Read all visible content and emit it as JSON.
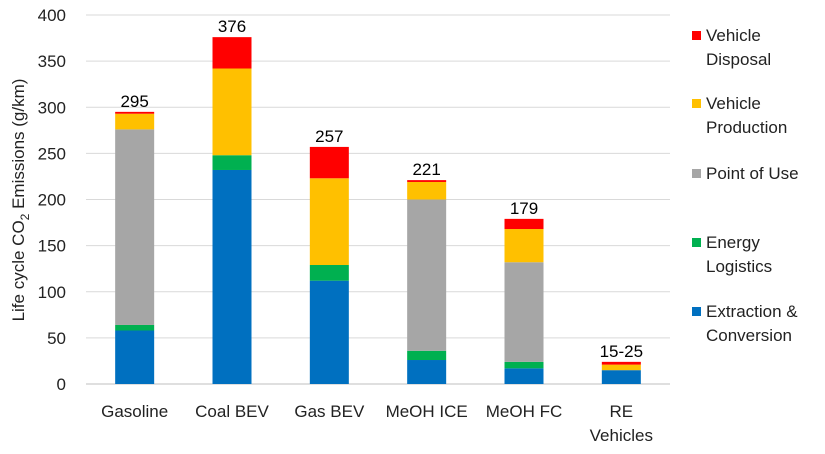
{
  "chart_data": {
    "type": "bar",
    "stacked": true,
    "ylabel_main": "Life cycle CO",
    "ylabel_sub": "2",
    "ylabel_tail": " Emissions (g/km)",
    "ylim": [
      0,
      400
    ],
    "yticks": [
      "0",
      "50",
      "100",
      "150",
      "200",
      "250",
      "300",
      "350",
      "400"
    ],
    "grid": true,
    "legend_position": "right",
    "categories": [
      [
        "Gasoline"
      ],
      [
        "Coal BEV"
      ],
      [
        "Gas BEV"
      ],
      [
        "MeOH ICE"
      ],
      [
        "MeOH FC"
      ],
      [
        "RE",
        "Vehicles"
      ]
    ],
    "totals": [
      "295",
      "376",
      "257",
      "221",
      "179",
      "15-25"
    ],
    "series": [
      {
        "name": [
          "Extraction &",
          "Conversion"
        ],
        "color": "#0070c0",
        "values": [
          58,
          232,
          112,
          26,
          17,
          15
        ]
      },
      {
        "name": [
          "Energy",
          "Logistics"
        ],
        "color": "#00b050",
        "values": [
          6,
          16,
          17,
          10,
          7,
          0
        ]
      },
      {
        "name": [
          "Point of Use"
        ],
        "color": "#a6a6a6",
        "values": [
          212,
          0,
          0,
          164,
          108,
          0
        ]
      },
      {
        "name": [
          "Vehicle",
          "Production"
        ],
        "color": "#ffc000",
        "values": [
          17,
          94,
          94,
          19,
          36,
          6
        ]
      },
      {
        "name": [
          "Vehicle",
          "Disposal"
        ],
        "color": "#ff0000",
        "values": [
          2,
          34,
          34,
          2,
          11,
          3
        ]
      }
    ]
  }
}
